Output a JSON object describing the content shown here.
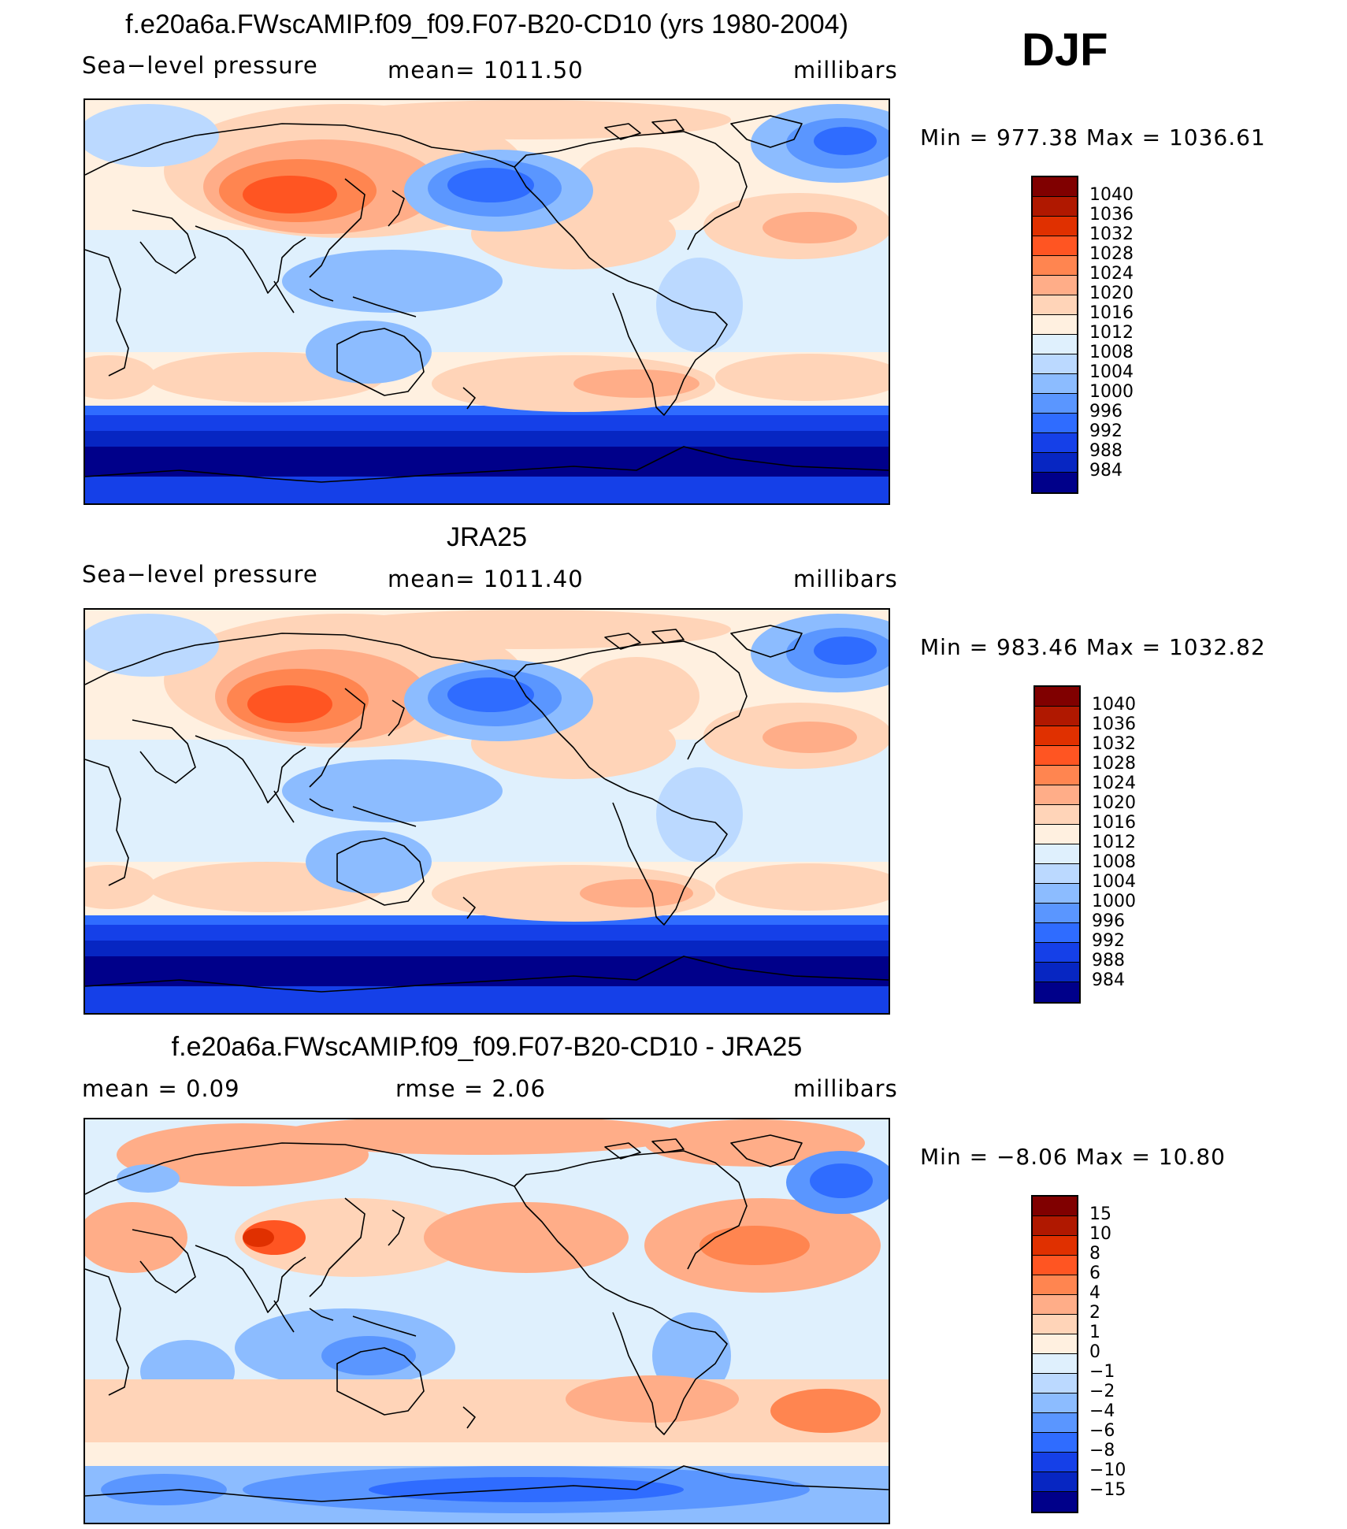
{
  "season": "DJF",
  "colors": {
    "pressure": [
      "#800000",
      "#b01800",
      "#e03000",
      "#ff5522",
      "#ff8550",
      "#ffad88",
      "#ffd4b8",
      "#fff0e0",
      "#dff0fd",
      "#bbd9ff",
      "#8cbcff",
      "#5a96ff",
      "#2f6cff",
      "#1540e8",
      "#0726c2",
      "#00008a"
    ],
    "diff": [
      "#800000",
      "#b01800",
      "#e03000",
      "#ff5522",
      "#ff8550",
      "#ffad88",
      "#ffd4b8",
      "#fff0e0",
      "#dff0fd",
      "#bbd9ff",
      "#8cbcff",
      "#5a96ff",
      "#2f6cff",
      "#1540e8",
      "#0726c2",
      "#00008a"
    ]
  },
  "panels": [
    {
      "title": "f.e20a6a.FWscAMIP.f09_f09.F07-B20-CD10 (yrs 1980-2004)",
      "variable": "Sea−level pressure",
      "mean_text": "mean=  1011.50",
      "units": "millibars",
      "minmax": "Min  =  977.38  Max  =  1036.61",
      "field": "model",
      "legend_labels": [
        "1040",
        "1036",
        "1032",
        "1028",
        "1024",
        "1020",
        "1016",
        "1012",
        "1008",
        "1004",
        "1000",
        "996",
        "992",
        "988",
        "984"
      ]
    },
    {
      "title": "JRA25",
      "variable": "Sea−level pressure",
      "mean_text": "mean=  1011.40",
      "units": "millibars",
      "minmax": "Min  =  983.46  Max  =  1032.82",
      "field": "obs",
      "legend_labels": [
        "1040",
        "1036",
        "1032",
        "1028",
        "1024",
        "1020",
        "1016",
        "1012",
        "1008",
        "1004",
        "1000",
        "996",
        "992",
        "988",
        "984"
      ]
    },
    {
      "title": "f.e20a6a.FWscAMIP.f09_f09.F07-B20-CD10 - JRA25",
      "mean_text": "mean  =      0.09",
      "rmse_text": "rmse  =      2.06",
      "units": "millibars",
      "minmax": "Min  =    −8.06  Max  =     10.80",
      "field": "diff",
      "legend_labels": [
        "15",
        "10",
        "8",
        "6",
        "4",
        "2",
        "1",
        "0",
        "−1",
        "−2",
        "−4",
        "−6",
        "−8",
        "−10",
        "−15"
      ]
    }
  ]
}
